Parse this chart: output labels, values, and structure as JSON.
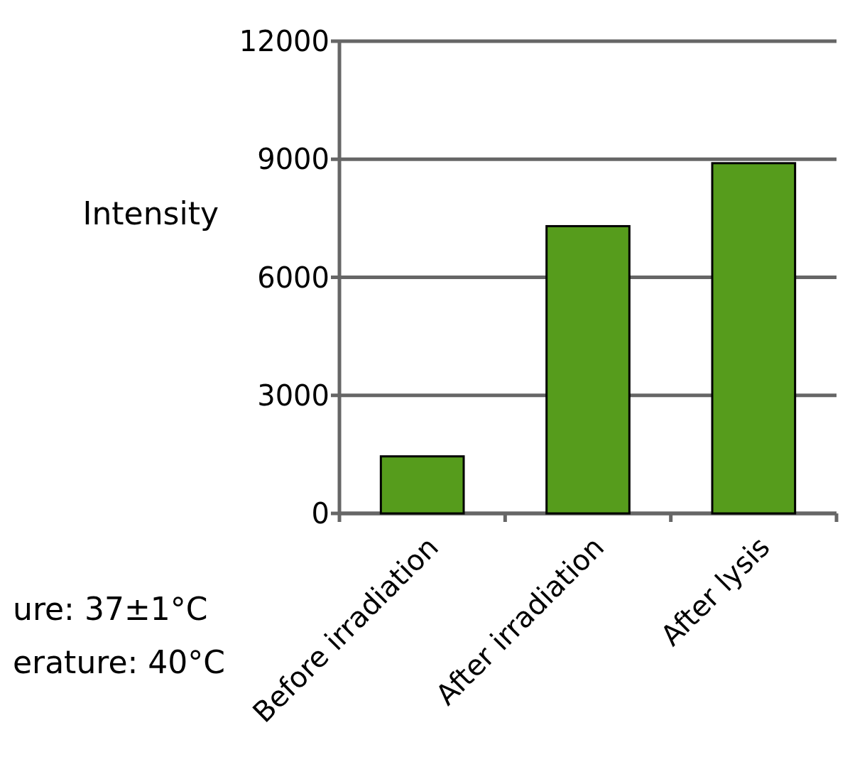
{
  "chart_data": {
    "type": "bar",
    "ylabel": "Intensity",
    "categories": [
      "Before irradiation",
      "After irradiation",
      "After lysis"
    ],
    "values": [
      1450,
      7300,
      8900
    ],
    "color": "#569c1c",
    "ylim": [
      0,
      12000
    ],
    "yticks": [
      0,
      3000,
      6000,
      9000,
      12000
    ],
    "grid": "y",
    "annotations": [
      "ure: 37±1°C",
      "erature: 40°C"
    ]
  }
}
